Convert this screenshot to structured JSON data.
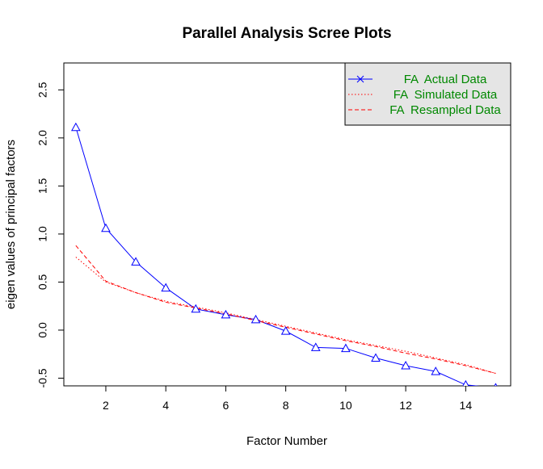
{
  "chart_data": {
    "type": "line",
    "title": "Parallel Analysis Scree Plots",
    "xlabel": "Factor Number",
    "ylabel": "eigen values of principal factors",
    "xlim": [
      0.6,
      15.5
    ],
    "ylim": [
      -0.58,
      2.78
    ],
    "xticks": [
      "2",
      "4",
      "6",
      "8",
      "10",
      "12",
      "14"
    ],
    "yticks": [
      "-0.5",
      "0.0",
      "0.5",
      "1.0",
      "1.5",
      "2.0",
      "2.5"
    ],
    "x": [
      1,
      2,
      3,
      4,
      5,
      6,
      7,
      8,
      9,
      10,
      11,
      12,
      13,
      14,
      15
    ],
    "series": [
      {
        "name": "FA  Actual Data",
        "color": "#0000ff",
        "line_style": "solid",
        "marker": "triangle",
        "legend_marker": "x",
        "values": [
          2.11,
          1.06,
          0.71,
          0.44,
          0.22,
          0.16,
          0.11,
          -0.01,
          -0.18,
          -0.19,
          -0.29,
          -0.37,
          -0.43,
          -0.57,
          -0.6
        ]
      },
      {
        "name": "FA  Simulated Data",
        "color": "#ff0000",
        "line_style": "dotted",
        "values": [
          0.76,
          0.5,
          0.39,
          0.3,
          0.24,
          0.18,
          0.11,
          0.04,
          -0.03,
          -0.1,
          -0.16,
          -0.22,
          -0.29,
          -0.36,
          -0.45
        ]
      },
      {
        "name": "FA  Resampled Data",
        "color": "#ff0000",
        "line_style": "dashed",
        "values": [
          0.88,
          0.51,
          0.39,
          0.29,
          0.23,
          0.17,
          0.1,
          0.03,
          -0.04,
          -0.11,
          -0.17,
          -0.24,
          -0.3,
          -0.37,
          -0.45
        ]
      }
    ],
    "legend_position": "top-right",
    "legend_background": "#e5e5e5",
    "grid": false
  }
}
